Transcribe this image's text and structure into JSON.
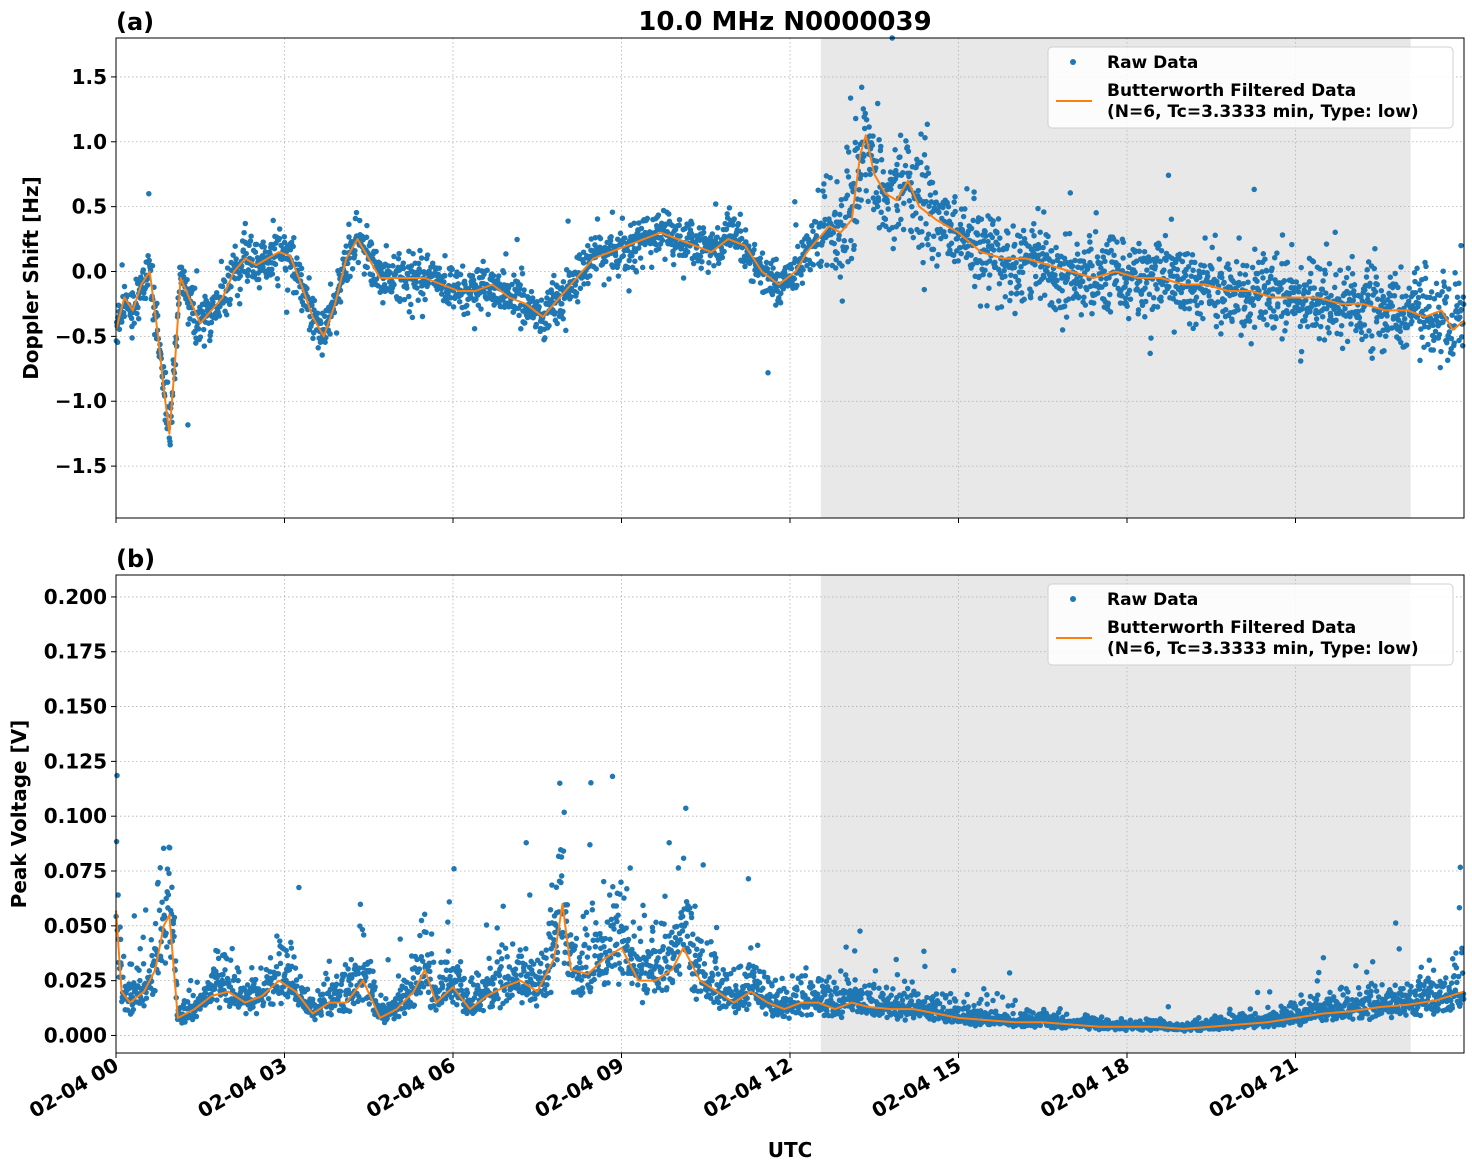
{
  "title": "10.0 MHz N0000039",
  "xlabel": "UTC",
  "colors": {
    "raw": "#1f77b4",
    "filtered": "#ff7f0e",
    "shade": "#e8e8e8"
  },
  "chart_data": [
    {
      "type": "scatter",
      "panel_label": "(a)",
      "ylabel": "Doppler Shift [Hz]",
      "xlim_hours": [
        0,
        24
      ],
      "ylim": [
        -1.9,
        1.8
      ],
      "yticks": [
        -1.5,
        -1.0,
        -0.5,
        0.0,
        0.5,
        1.0,
        1.5
      ],
      "ytick_labels": [
        "−1.5",
        "−1.0",
        "−0.5",
        "0.0",
        "0.5",
        "1.0",
        "1.5"
      ],
      "shaded_region_hours": [
        12.55,
        23.05
      ],
      "grid": true,
      "legend_position": "upper-right",
      "legend": [
        "Raw Data",
        "Butterworth Filtered Data",
        "(N=6, Tc=3.3333 min, Type: low)"
      ],
      "series": [
        {
          "name": "Raw Data",
          "kind": "points",
          "spread": 0.12
        },
        {
          "name": "Butterworth Filtered Data",
          "kind": "line",
          "x": [
            0,
            0.15,
            0.3,
            0.45,
            0.6,
            0.75,
            0.85,
            0.95,
            1.05,
            1.15,
            1.3,
            1.5,
            1.7,
            1.9,
            2.1,
            2.3,
            2.5,
            2.7,
            2.9,
            3.1,
            3.3,
            3.5,
            3.7,
            3.9,
            4.1,
            4.3,
            4.5,
            4.7,
            4.9,
            5.2,
            5.5,
            5.8,
            6.1,
            6.4,
            6.7,
            7.0,
            7.3,
            7.6,
            7.9,
            8.2,
            8.5,
            8.8,
            9.1,
            9.4,
            9.7,
            10.0,
            10.3,
            10.6,
            10.9,
            11.2,
            11.5,
            11.8,
            12.1,
            12.3,
            12.5,
            12.7,
            12.9,
            13.1,
            13.25,
            13.35,
            13.5,
            13.7,
            13.9,
            14.1,
            14.3,
            14.6,
            15.0,
            15.4,
            15.8,
            16.2,
            16.6,
            17.0,
            17.4,
            17.8,
            18.2,
            18.6,
            19.0,
            19.4,
            19.8,
            20.2,
            20.6,
            21.0,
            21.4,
            21.8,
            22.2,
            22.6,
            23.0,
            23.3,
            23.6,
            23.8,
            24.0
          ],
          "y": [
            -0.45,
            -0.2,
            -0.3,
            -0.1,
            0.0,
            -0.5,
            -0.9,
            -1.25,
            -0.7,
            -0.05,
            -0.2,
            -0.4,
            -0.3,
            -0.2,
            0.0,
            0.1,
            0.05,
            0.1,
            0.15,
            0.12,
            -0.1,
            -0.35,
            -0.5,
            -0.25,
            0.1,
            0.25,
            0.1,
            -0.05,
            -0.05,
            -0.05,
            -0.05,
            -0.1,
            -0.15,
            -0.15,
            -0.1,
            -0.2,
            -0.25,
            -0.35,
            -0.2,
            -0.05,
            0.1,
            0.15,
            0.2,
            0.25,
            0.3,
            0.25,
            0.2,
            0.15,
            0.25,
            0.2,
            0.0,
            -0.1,
            0.0,
            0.15,
            0.25,
            0.35,
            0.3,
            0.4,
            0.9,
            1.05,
            0.75,
            0.6,
            0.55,
            0.7,
            0.5,
            0.4,
            0.3,
            0.15,
            0.1,
            0.1,
            0.05,
            0.0,
            -0.05,
            0.0,
            -0.05,
            -0.05,
            -0.1,
            -0.1,
            -0.15,
            -0.15,
            -0.2,
            -0.2,
            -0.2,
            -0.25,
            -0.25,
            -0.3,
            -0.3,
            -0.35,
            -0.3,
            -0.45,
            -0.38
          ]
        }
      ]
    },
    {
      "type": "scatter",
      "panel_label": "(b)",
      "ylabel": "Peak Voltage [V]",
      "xlim_hours": [
        0,
        24
      ],
      "ylim": [
        -0.008,
        0.21
      ],
      "yticks": [
        0.0,
        0.025,
        0.05,
        0.075,
        0.1,
        0.125,
        0.15,
        0.175,
        0.2
      ],
      "ytick_labels": [
        "0.000",
        "0.025",
        "0.050",
        "0.075",
        "0.100",
        "0.125",
        "0.150",
        "0.175",
        "0.200"
      ],
      "shaded_region_hours": [
        12.55,
        23.05
      ],
      "grid": true,
      "legend_position": "upper-right",
      "legend": [
        "Raw Data",
        "Butterworth Filtered Data",
        "(N=6, Tc=3.3333 min, Type: low)"
      ],
      "xticks": [
        0,
        3,
        6,
        9,
        12,
        15,
        18,
        21
      ],
      "xtick_labels": [
        "02-04 00",
        "02-04 03",
        "02-04 06",
        "02-04 09",
        "02-04 12",
        "02-04 15",
        "02-04 18",
        "02-04 21"
      ],
      "series": [
        {
          "name": "Raw Data",
          "kind": "points"
        },
        {
          "name": "Butterworth Filtered Data",
          "kind": "line",
          "x": [
            0,
            0.1,
            0.25,
            0.5,
            0.7,
            0.85,
            0.95,
            1.1,
            1.4,
            1.7,
            2.0,
            2.3,
            2.6,
            2.9,
            3.2,
            3.5,
            3.8,
            4.1,
            4.4,
            4.7,
            5.0,
            5.3,
            5.5,
            5.7,
            6.0,
            6.3,
            6.6,
            6.9,
            7.2,
            7.5,
            7.8,
            7.95,
            8.1,
            8.4,
            8.7,
            9.0,
            9.3,
            9.6,
            9.9,
            10.1,
            10.4,
            10.7,
            11.0,
            11.3,
            11.6,
            11.9,
            12.2,
            12.5,
            12.8,
            13.1,
            13.4,
            13.8,
            14.2,
            14.6,
            15.0,
            15.5,
            16.0,
            16.5,
            17.0,
            17.5,
            18.0,
            18.5,
            19.0,
            19.5,
            20.0,
            20.5,
            21.0,
            21.5,
            22.0,
            22.5,
            23.0,
            23.5,
            24.0
          ],
          "y": [
            0.057,
            0.02,
            0.015,
            0.02,
            0.03,
            0.05,
            0.055,
            0.008,
            0.012,
            0.018,
            0.02,
            0.015,
            0.018,
            0.025,
            0.02,
            0.01,
            0.015,
            0.015,
            0.025,
            0.008,
            0.012,
            0.02,
            0.03,
            0.015,
            0.022,
            0.012,
            0.018,
            0.022,
            0.025,
            0.02,
            0.035,
            0.06,
            0.03,
            0.028,
            0.035,
            0.04,
            0.025,
            0.025,
            0.03,
            0.04,
            0.025,
            0.02,
            0.015,
            0.02,
            0.015,
            0.012,
            0.015,
            0.015,
            0.012,
            0.015,
            0.013,
            0.012,
            0.012,
            0.01,
            0.008,
            0.007,
            0.006,
            0.006,
            0.005,
            0.004,
            0.004,
            0.004,
            0.003,
            0.004,
            0.005,
            0.006,
            0.008,
            0.01,
            0.011,
            0.013,
            0.014,
            0.016,
            0.02
          ]
        }
      ]
    }
  ]
}
